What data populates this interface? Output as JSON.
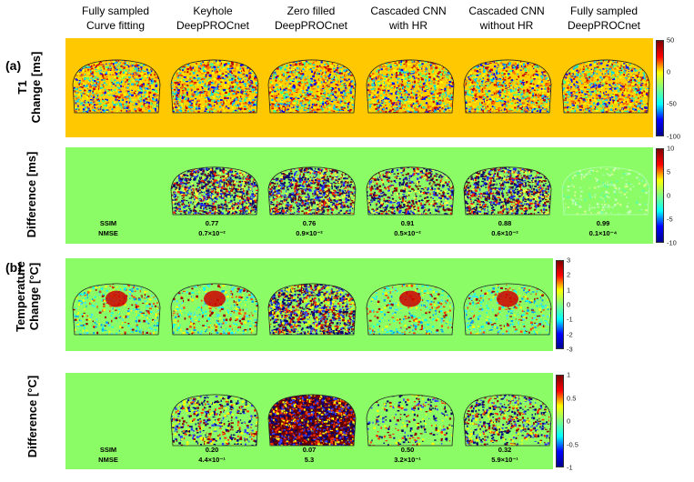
{
  "columns": [
    {
      "line1": "Fully sampled",
      "line2": "Curve fitting"
    },
    {
      "line1": "Keyhole",
      "line2": "DeepPROCnet"
    },
    {
      "line1": "Zero filled",
      "line2": "DeepPROCnet"
    },
    {
      "line1": "Cascaded CNN",
      "line2": "with HR"
    },
    {
      "line1": "Cascaded CNN",
      "line2": "without HR"
    },
    {
      "line1": "Fully sampled",
      "line2": "DeepPROCnet"
    }
  ],
  "panel_a": {
    "tag": "(a)",
    "row1_label_line1": "T1",
    "row1_label_line2": "Change [ms]",
    "row2_label": "Difference [ms]",
    "colorbar1_ticks": [
      "50",
      "0",
      "-50",
      "-100"
    ],
    "colorbar2_ticks": [
      "10",
      "5",
      "0",
      "-5",
      "-10"
    ],
    "metric_names": [
      "SSIM",
      "NMSE"
    ],
    "ssim": [
      "0.77",
      "0.76",
      "0.91",
      "0.88",
      "0.99"
    ],
    "nmse": [
      "0.7×10⁻²",
      "0.9×10⁻²",
      "0.5×10⁻²",
      "0.6×10⁻²",
      "0.1×10⁻⁴"
    ]
  },
  "panel_b": {
    "tag": "(b)",
    "row1_label_line1": "Temperature",
    "row1_label_line2": "Change [°C]",
    "row2_label": "Difference [°C]",
    "colorbar1_ticks": [
      "3",
      "2",
      "1",
      "0",
      "-1",
      "-2",
      "-3"
    ],
    "colorbar2_ticks": [
      "1",
      "0.5",
      "0",
      "-0.5",
      "-1"
    ],
    "metric_names": [
      "SSIM",
      "NMSE"
    ],
    "ssim": [
      "0.20",
      "0.07",
      "0.50",
      "0.32"
    ],
    "nmse": [
      "4.4×10⁻¹",
      "5.3",
      "3.2×10⁻¹",
      "5.9×10⁻¹"
    ]
  },
  "colors": {
    "t1_background": "#ffc800",
    "green_background": "#8cfc66",
    "jet": [
      "#00008f",
      "#0000ff",
      "#00ffff",
      "#80ff80",
      "#ffff00",
      "#ff0000",
      "#800000"
    ]
  }
}
